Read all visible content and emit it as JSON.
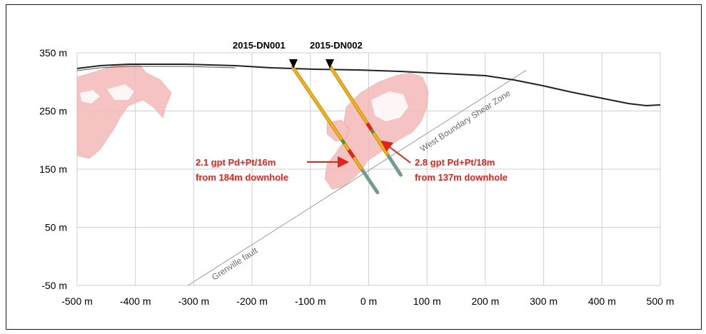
{
  "chart_data": {
    "type": "cross-section",
    "x_ticks": [
      "-500 m",
      "-400 m",
      "-300 m",
      "-200 m",
      "-100 m",
      "0 m",
      "100 m",
      "200 m",
      "300 m",
      "400 m",
      "500 m"
    ],
    "y_ticks": [
      "350 m",
      "250 m",
      "150 m",
      "50 m",
      "-50 m"
    ],
    "xlim": [
      -500,
      500
    ],
    "ylim": [
      -50,
      350
    ],
    "grid": true,
    "drillholes": [
      {
        "name": "2015-DN001",
        "collar": [
          -130,
          325
        ],
        "toe": [
          15,
          110
        ]
      },
      {
        "name": "2015-DN002",
        "collar": [
          -65,
          325
        ],
        "toe": [
          55,
          140
        ]
      }
    ],
    "intercepts": [
      {
        "hole": "2015-DN001",
        "line1": "2.1 gpt Pd+Pt/16m",
        "line2": "from 184m downhole",
        "at": [
          -20,
          162
        ]
      },
      {
        "hole": "2015-DN002",
        "line1": "2.8 gpt Pd+Pt/18m",
        "line2": "from 137m downhole",
        "at": [
          20,
          195
        ]
      }
    ],
    "structures": [
      {
        "label": "West Boundary Shear Zone",
        "from": [
          -310,
          -50
        ],
        "to": [
          270,
          320
        ]
      },
      {
        "label": "Grenville fault"
      }
    ],
    "colors": {
      "topography": "#222222",
      "mineralized_zone": "#f4b9b9",
      "drillhole": "#f0b323",
      "intercept": "#e2231a",
      "annotation": "#e2231a",
      "structure": "#9a9a9a",
      "grid": "#cfcfcf"
    }
  }
}
